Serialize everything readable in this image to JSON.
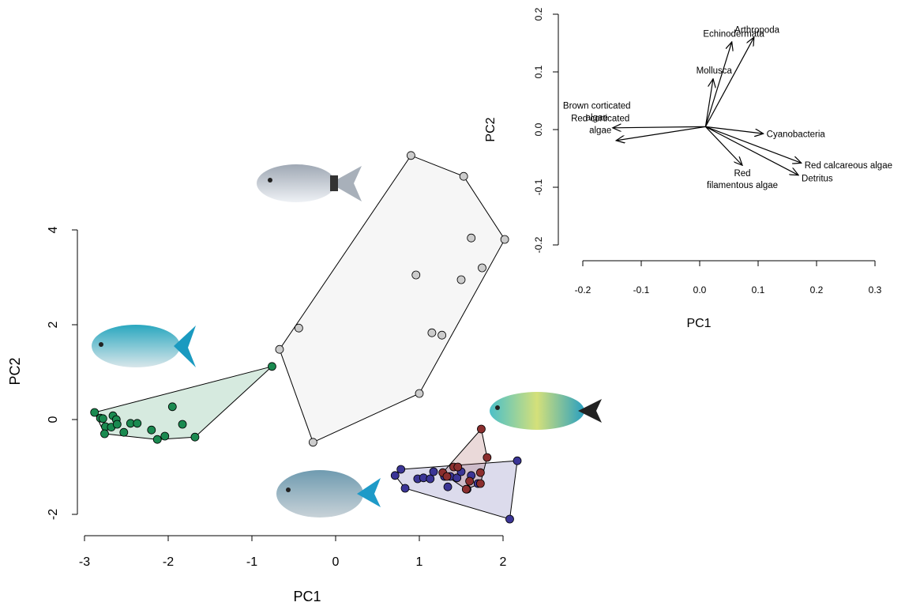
{
  "chart_data": [
    {
      "type": "scatter",
      "xlabel": "PC1",
      "ylabel": "PC2",
      "xlim": [
        -3.1,
        2.3
      ],
      "ylim": [
        -2.3,
        5.8
      ],
      "xticks": [
        -3,
        -2,
        -1,
        0,
        1,
        2
      ],
      "yticks": [
        -2,
        0,
        2,
        4
      ],
      "series": [
        {
          "color": "#cccccc",
          "x": [
            0.9,
            1.53,
            2.02,
            1.62,
            1.75,
            0.96,
            1.5,
            1.15,
            1.27,
            -0.44,
            -0.67,
            1.0,
            -0.27
          ],
          "values": [
            5.57,
            5.13,
            3.8,
            3.83,
            3.2,
            3.05,
            2.95,
            1.83,
            1.78,
            1.93,
            1.48,
            0.55,
            -0.48
          ]
        },
        {
          "color": "#1a8a50",
          "x": [
            -0.76,
            -2.88,
            -2.81,
            -2.78,
            -2.75,
            -2.76,
            -2.68,
            -2.66,
            -2.62,
            -2.61,
            -2.53,
            -2.45,
            -2.37,
            -2.2,
            -2.13,
            -2.04,
            -1.95,
            -1.83,
            -1.68
          ],
          "values": [
            1.12,
            0.15,
            0.03,
            0.02,
            -0.15,
            -0.3,
            -0.16,
            0.08,
            0.0,
            -0.1,
            -0.27,
            -0.08,
            -0.08,
            -0.22,
            -0.42,
            -0.35,
            0.27,
            -0.1,
            -0.37
          ]
        },
        {
          "color": "#3b3596",
          "x": [
            0.71,
            0.78,
            0.83,
            0.98,
            1.05,
            1.13,
            1.17,
            1.3,
            1.34,
            1.37,
            1.45,
            1.5,
            1.57,
            1.62,
            1.7,
            2.17,
            2.08
          ],
          "values": [
            -1.18,
            -1.05,
            -1.45,
            -1.25,
            -1.23,
            -1.25,
            -1.1,
            -1.2,
            -1.42,
            -1.2,
            -1.23,
            -1.1,
            -1.47,
            -1.18,
            -1.35,
            -0.87,
            -2.1
          ]
        },
        {
          "color": "#8b2e2e",
          "x": [
            1.74,
            1.81,
            1.73,
            1.73,
            1.56,
            1.41,
            1.46,
            1.28,
            1.33,
            1.6
          ],
          "values": [
            -0.2,
            -0.8,
            -1.12,
            -1.35,
            -1.47,
            -1.0,
            -1.0,
            -1.12,
            -1.2,
            -1.3
          ]
        }
      ]
    },
    {
      "type": "arrows",
      "xlabel": "PC1",
      "ylabel": "PC2",
      "xlim": [
        -0.22,
        0.31
      ],
      "ylim": [
        -0.21,
        0.21
      ],
      "xticks": [
        -0.2,
        -0.1,
        {
          "value": 0,
          "label": "0.0"
        },
        0.1,
        0.2,
        0.3
      ],
      "yticks": [
        -0.2,
        -0.1,
        {
          "value": 0,
          "label": "0.0"
        },
        0.1,
        0.2
      ],
      "origin": {
        "x": 0.01,
        "y": 0.005
      },
      "arrows": [
        {
          "label": [
            "Arthropoda"
          ],
          "x": 0.093,
          "y": 0.16
        },
        {
          "label": [
            "Echinodermata"
          ],
          "x": 0.055,
          "y": 0.152
        },
        {
          "label": [
            "Mollusca"
          ],
          "x": 0.023,
          "y": 0.088
        },
        {
          "label": [
            "Brown corticated",
            "algae"
          ],
          "x": -0.149,
          "y": 0.003
        },
        {
          "label": [
            "Red corticated",
            "algae"
          ],
          "x": -0.143,
          "y": -0.019
        },
        {
          "label": [
            "Cyanobacteria"
          ],
          "x": 0.109,
          "y": -0.007
        },
        {
          "label": [
            "Red",
            "filamentous algae"
          ],
          "x": 0.073,
          "y": -0.062
        },
        {
          "label": [
            "Red calcareous algae"
          ],
          "x": 0.174,
          "y": -0.058
        },
        {
          "label": [
            "Detritus"
          ],
          "x": 0.169,
          "y": -0.079
        }
      ]
    }
  ]
}
